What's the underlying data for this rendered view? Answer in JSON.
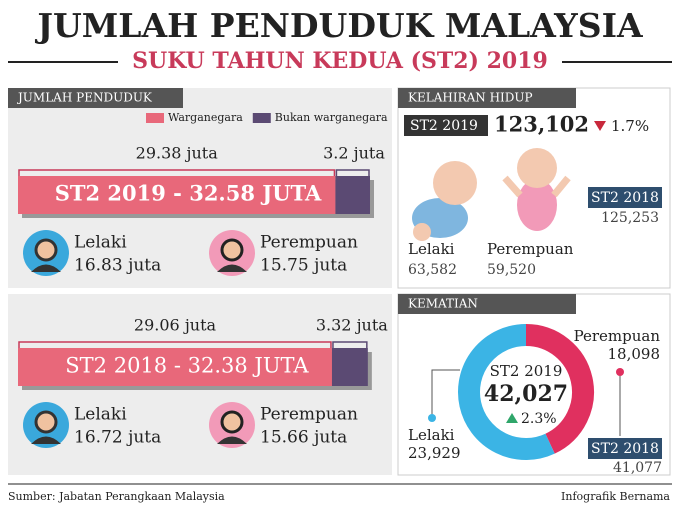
{
  "header": {
    "title": "JUMLAH PENDUDUK MALAYSIA",
    "subtitle": "SUKU TAHUN KEDUA (ST2) 2019"
  },
  "population": {
    "heading": "JUMLAH PENDUDUK",
    "legend": [
      {
        "name": "Warganegara",
        "color": "#e8687a"
      },
      {
        "name": "Bukan warganegara",
        "color": "#5b4a73"
      }
    ],
    "panels": [
      {
        "citizens": {
          "value": 29.38,
          "label": "29.38 juta"
        },
        "non_citizens": {
          "value": 3.2,
          "label": "3.2 juta"
        },
        "bar_label": "ST2 2019 - 32.58 JUTA",
        "male": {
          "name": "Lelaki",
          "value": "16.83 juta"
        },
        "female": {
          "name": "Perempuan",
          "value": "15.75 juta"
        }
      },
      {
        "citizens": {
          "value": 29.06,
          "label": "29.06 juta"
        },
        "non_citizens": {
          "value": 3.32,
          "label": "3.32 juta"
        },
        "bar_label": "ST2 2018 - 32.38 JUTA",
        "male": {
          "name": "Lelaki",
          "value": "16.72 juta"
        },
        "female": {
          "name": "Perempuan",
          "value": "15.66 juta"
        }
      }
    ]
  },
  "births": {
    "heading": "KELAHIRAN HIDUP",
    "current": {
      "period": "ST2 2019",
      "total": "123,102",
      "change": "1.7%"
    },
    "previous": {
      "period": "ST2 2018",
      "total": "125,253"
    },
    "male": {
      "name": "Lelaki",
      "value": "63,582"
    },
    "female": {
      "name": "Perempuan",
      "value": "59,520"
    }
  },
  "deaths": {
    "heading": "KEMATIAN",
    "current": {
      "period": "ST2 2019",
      "total": "42,027",
      "change": "2.3%"
    },
    "previous": {
      "period": "ST2 2018",
      "total": "41,077"
    },
    "male": {
      "name": "Lelaki",
      "value": 23929,
      "label": "23,929",
      "color": "#3bb4e5"
    },
    "female": {
      "name": "Perempuan",
      "value": 18098,
      "label": "18,098",
      "color": "#e0305f"
    }
  },
  "footer": {
    "source": "Sumber: Jabatan Perangkaan Malaysia",
    "credit": "Infografik Bernama"
  }
}
